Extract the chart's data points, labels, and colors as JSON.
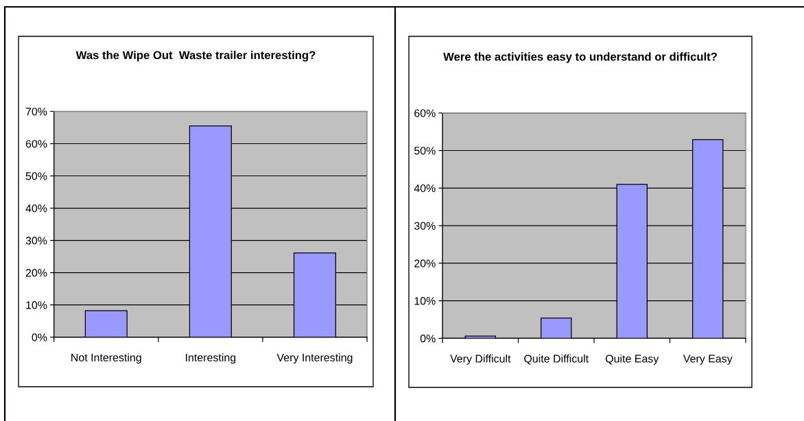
{
  "chart_data": [
    {
      "type": "bar",
      "title": "Was the Wipe Out  Waste trailer interesting?",
      "categories": [
        "Not Interesting",
        "Interesting",
        "Very Interesting"
      ],
      "values": [
        8.2,
        65.5,
        26.1
      ],
      "color": "#9999ff",
      "ylim": [
        0,
        70
      ],
      "yticks": [
        {
          "value": 0,
          "label": "0%"
        },
        {
          "value": 10,
          "label": "10%"
        },
        {
          "value": 20,
          "label": "20%"
        },
        {
          "value": 30,
          "label": "30%"
        },
        {
          "value": 40,
          "label": "40%"
        },
        {
          "value": 50,
          "label": "50%"
        },
        {
          "value": 60,
          "label": "60%"
        },
        {
          "value": 70,
          "label": "70%"
        }
      ],
      "grid": "y"
    },
    {
      "type": "bar",
      "title": "Were the activities easy to understand or difficult?",
      "categories": [
        "Very Difficult",
        "Quite Difficult",
        "Quite Easy",
        "Very Easy"
      ],
      "values": [
        0.6,
        5.4,
        41.0,
        52.9
      ],
      "color": "#9999ff",
      "ylim": [
        0,
        60
      ],
      "yticks": [
        {
          "value": 0,
          "label": "0%"
        },
        {
          "value": 10,
          "label": "10%"
        },
        {
          "value": 20,
          "label": "20%"
        },
        {
          "value": 30,
          "label": "30%"
        },
        {
          "value": 40,
          "label": "40%"
        },
        {
          "value": 50,
          "label": "50%"
        },
        {
          "value": 60,
          "label": "60%"
        }
      ],
      "grid": "y"
    }
  ]
}
